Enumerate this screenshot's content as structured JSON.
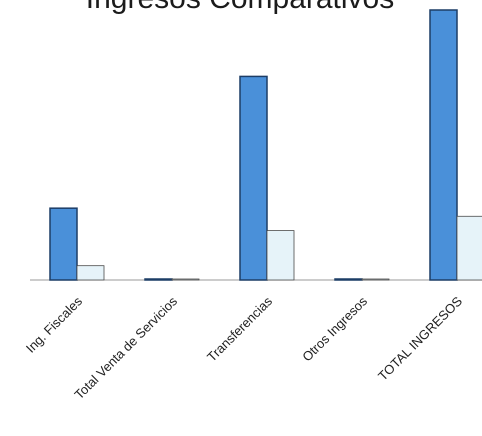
{
  "chart_data": {
    "type": "bar",
    "title": "Ingresos Comparativos",
    "xlabel": "",
    "ylabel": "",
    "categories": [
      "Ing. Fiscales",
      "Total Venta de Servicios",
      "Transferencias",
      "Otros Ingresos",
      "TOTAL INGRESOS"
    ],
    "series": [
      {
        "values": [
          26.6,
          0.2,
          75.4,
          0.2,
          100
        ]
      },
      {
        "values": [
          5.3,
          0,
          18.3,
          0.3,
          23.6
        ]
      }
    ],
    "ylim": [
      0,
      100
    ],
    "grid": false,
    "legend": "none"
  },
  "colors": {
    "series_1": "#4a90d9",
    "series_1_edge": "#1c3d66",
    "series_2": "#e6f3f9",
    "series_2_edge": "#4a4a4a",
    "baseline": "#9a9a9a"
  }
}
